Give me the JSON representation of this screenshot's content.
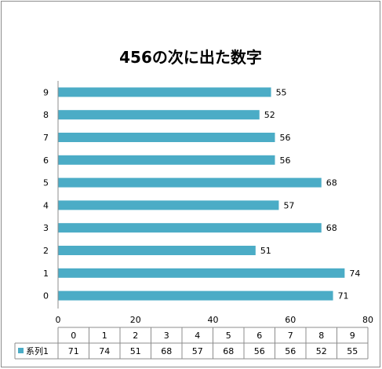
{
  "chart_data": {
    "type": "bar",
    "orientation": "horizontal",
    "title": "456の次に出た数字",
    "categories": [
      "0",
      "1",
      "2",
      "3",
      "4",
      "5",
      "6",
      "7",
      "8",
      "9"
    ],
    "series": [
      {
        "name": "系列1",
        "values": [
          71,
          74,
          51,
          68,
          57,
          68,
          56,
          56,
          52,
          55
        ],
        "color": "#4bacc6"
      }
    ],
    "xlim": [
      0,
      80
    ],
    "x_ticks": [
      0,
      20,
      40,
      60,
      80
    ],
    "grid": false,
    "legend": "data-table"
  }
}
